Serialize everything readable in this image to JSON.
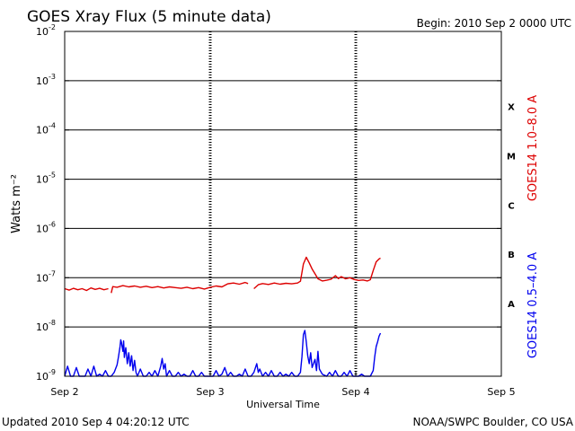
{
  "header": {
    "title": "GOES Xray Flux (5 minute data)",
    "begin": "Begin:  2010 Sep 2 0000 UTC"
  },
  "footer": {
    "updated": "Updated 2010 Sep  4 04:20:12 UTC",
    "source": "NOAA/SWPC Boulder, CO USA"
  },
  "chart_data": {
    "type": "line",
    "title": "GOES Xray Flux (5 minute data)",
    "xlabel": "Universal Time",
    "ylabel": "Watts m⁻²",
    "yscale": "log",
    "ylim": [
      1e-09,
      0.01
    ],
    "xlim": [
      0,
      3
    ],
    "x_units": "days since 2010 Sep 2 0000 UTC",
    "x_ticks": [
      {
        "label": "Sep 2",
        "x": 0
      },
      {
        "label": "Sep 3",
        "x": 1
      },
      {
        "label": "Sep 4",
        "x": 2
      },
      {
        "label": "Sep 5",
        "x": 3
      }
    ],
    "y_ticks": [
      {
        "label": "10",
        "exp": "-2",
        "value": 0.01
      },
      {
        "label": "10",
        "exp": "-3",
        "value": 0.001
      },
      {
        "label": "10",
        "exp": "-4",
        "value": 0.0001
      },
      {
        "label": "10",
        "exp": "-5",
        "value": 1e-05
      },
      {
        "label": "10",
        "exp": "-6",
        "value": 1e-06
      },
      {
        "label": "10",
        "exp": "-7",
        "value": 1e-07
      },
      {
        "label": "10",
        "exp": "-8",
        "value": 1e-08
      },
      {
        "label": "10",
        "exp": "-9",
        "value": 1e-09
      }
    ],
    "flare_classes": [
      {
        "label": "X",
        "value": 0.0003
      },
      {
        "label": "M",
        "value": 3e-05
      },
      {
        "label": "C",
        "value": 3e-06
      },
      {
        "label": "B",
        "value": 3e-07
      },
      {
        "label": "A",
        "value": 3e-08
      }
    ],
    "grid": true,
    "series": [
      {
        "name": "GOES14 1.0–8.0 A",
        "color": "#dd0000",
        "points": [
          [
            0.0,
            6e-08
          ],
          [
            0.03,
            5.6e-08
          ],
          [
            0.06,
            6.1e-08
          ],
          [
            0.09,
            5.7e-08
          ],
          [
            0.12,
            6e-08
          ],
          [
            0.15,
            5.5e-08
          ],
          [
            0.18,
            6.2e-08
          ],
          [
            0.21,
            5.8e-08
          ],
          [
            0.24,
            6.1e-08
          ],
          [
            0.27,
            5.7e-08
          ],
          [
            0.3,
            6e-08
          ],
          [
            0.31,
            null
          ],
          [
            0.32,
            4.9e-08
          ],
          [
            0.33,
            6.6e-08
          ],
          [
            0.36,
            6.4e-08
          ],
          [
            0.4,
            6.9e-08
          ],
          [
            0.44,
            6.5e-08
          ],
          [
            0.48,
            6.8e-08
          ],
          [
            0.52,
            6.4e-08
          ],
          [
            0.56,
            6.7e-08
          ],
          [
            0.6,
            6.3e-08
          ],
          [
            0.64,
            6.6e-08
          ],
          [
            0.68,
            6.2e-08
          ],
          [
            0.72,
            6.5e-08
          ],
          [
            0.76,
            6.3e-08
          ],
          [
            0.8,
            6.1e-08
          ],
          [
            0.84,
            6.4e-08
          ],
          [
            0.88,
            6e-08
          ],
          [
            0.92,
            6.3e-08
          ],
          [
            0.96,
            5.9e-08
          ],
          [
            1.0,
            6.4e-08
          ],
          [
            1.04,
            6.8e-08
          ],
          [
            1.08,
            6.5e-08
          ],
          [
            1.12,
            7.5e-08
          ],
          [
            1.16,
            7.8e-08
          ],
          [
            1.2,
            7.4e-08
          ],
          [
            1.24,
            8e-08
          ],
          [
            1.26,
            7.6e-08
          ],
          [
            1.27,
            null
          ],
          [
            1.3,
            6e-08
          ],
          [
            1.33,
            7.2e-08
          ],
          [
            1.36,
            7.6e-08
          ],
          [
            1.4,
            7.3e-08
          ],
          [
            1.44,
            7.8e-08
          ],
          [
            1.48,
            7.4e-08
          ],
          [
            1.52,
            7.7e-08
          ],
          [
            1.56,
            7.5e-08
          ],
          [
            1.6,
            7.8e-08
          ],
          [
            1.62,
            8.5e-08
          ],
          [
            1.64,
            1.9e-07
          ],
          [
            1.66,
            2.6e-07
          ],
          [
            1.68,
            2e-07
          ],
          [
            1.7,
            1.5e-07
          ],
          [
            1.72,
            1.2e-07
          ],
          [
            1.74,
            9.5e-08
          ],
          [
            1.77,
            8.6e-08
          ],
          [
            1.8,
            8.9e-08
          ],
          [
            1.83,
            9.3e-08
          ],
          [
            1.86,
            1.1e-07
          ],
          [
            1.88,
            9.6e-08
          ],
          [
            1.9,
            1.05e-07
          ],
          [
            1.93,
            9.5e-08
          ],
          [
            1.96,
            1e-07
          ],
          [
            1.99,
            9.2e-08
          ],
          [
            2.02,
            8.8e-08
          ],
          [
            2.05,
            9e-08
          ],
          [
            2.08,
            8.6e-08
          ],
          [
            2.1,
            9.1e-08
          ],
          [
            2.12,
            1.4e-07
          ],
          [
            2.14,
            2.1e-07
          ],
          [
            2.16,
            2.4e-07
          ],
          [
            2.17,
            2.5e-07
          ]
        ]
      },
      {
        "name": "GOES14 0.5–4.0 A",
        "color": "#0000ee",
        "points": [
          [
            0.0,
            1e-09
          ],
          [
            0.02,
            1.6e-09
          ],
          [
            0.04,
            1e-09
          ],
          [
            0.06,
            1e-09
          ],
          [
            0.08,
            1.5e-09
          ],
          [
            0.1,
            1e-09
          ],
          [
            0.12,
            1e-09
          ],
          [
            0.14,
            1e-09
          ],
          [
            0.16,
            1.4e-09
          ],
          [
            0.18,
            1e-09
          ],
          [
            0.2,
            1.6e-09
          ],
          [
            0.22,
            1e-09
          ],
          [
            0.24,
            1.1e-09
          ],
          [
            0.26,
            1e-09
          ],
          [
            0.28,
            1.3e-09
          ],
          [
            0.3,
            1e-09
          ],
          [
            0.32,
            1e-09
          ],
          [
            0.34,
            1.2e-09
          ],
          [
            0.36,
            1.7e-09
          ],
          [
            0.37,
            2.5e-09
          ],
          [
            0.38,
            4e-09
          ],
          [
            0.385,
            5.5e-09
          ],
          [
            0.39,
            4.8e-09
          ],
          [
            0.4,
            3.2e-09
          ],
          [
            0.405,
            5.2e-09
          ],
          [
            0.41,
            2.4e-09
          ],
          [
            0.42,
            3.8e-09
          ],
          [
            0.43,
            1.8e-09
          ],
          [
            0.44,
            3e-09
          ],
          [
            0.45,
            1.6e-09
          ],
          [
            0.46,
            2.6e-09
          ],
          [
            0.47,
            1.3e-09
          ],
          [
            0.48,
            2.1e-09
          ],
          [
            0.49,
            1.2e-09
          ],
          [
            0.5,
            1e-09
          ],
          [
            0.52,
            1.4e-09
          ],
          [
            0.54,
            1e-09
          ],
          [
            0.56,
            1e-09
          ],
          [
            0.58,
            1.2e-09
          ],
          [
            0.6,
            1e-09
          ],
          [
            0.62,
            1.3e-09
          ],
          [
            0.64,
            1e-09
          ],
          [
            0.66,
            1.6e-09
          ],
          [
            0.67,
            2.3e-09
          ],
          [
            0.68,
            1.4e-09
          ],
          [
            0.69,
            1.8e-09
          ],
          [
            0.7,
            1e-09
          ],
          [
            0.72,
            1.3e-09
          ],
          [
            0.74,
            1e-09
          ],
          [
            0.76,
            1e-09
          ],
          [
            0.78,
            1.2e-09
          ],
          [
            0.8,
            1e-09
          ],
          [
            0.82,
            1.1e-09
          ],
          [
            0.84,
            1e-09
          ],
          [
            0.86,
            1e-09
          ],
          [
            0.88,
            1.3e-09
          ],
          [
            0.9,
            1e-09
          ],
          [
            0.92,
            1e-09
          ],
          [
            0.94,
            1.2e-09
          ],
          [
            0.96,
            1e-09
          ],
          [
            0.98,
            1e-09
          ],
          [
            1.0,
            1e-09
          ],
          [
            1.02,
            1e-09
          ],
          [
            1.04,
            1.3e-09
          ],
          [
            1.06,
            1e-09
          ],
          [
            1.08,
            1.1e-09
          ],
          [
            1.1,
            1.5e-09
          ],
          [
            1.12,
            1e-09
          ],
          [
            1.14,
            1.2e-09
          ],
          [
            1.16,
            1e-09
          ],
          [
            1.18,
            1e-09
          ],
          [
            1.2,
            1.1e-09
          ],
          [
            1.22,
            1e-09
          ],
          [
            1.24,
            1.4e-09
          ],
          [
            1.26,
            1e-09
          ],
          [
            1.28,
            1e-09
          ],
          [
            1.3,
            1.2e-09
          ],
          [
            1.32,
            1.8e-09
          ],
          [
            1.33,
            1.2e-09
          ],
          [
            1.34,
            1.4e-09
          ],
          [
            1.36,
            1e-09
          ],
          [
            1.38,
            1.2e-09
          ],
          [
            1.4,
            1e-09
          ],
          [
            1.42,
            1.3e-09
          ],
          [
            1.44,
            1e-09
          ],
          [
            1.46,
            1e-09
          ],
          [
            1.48,
            1.2e-09
          ],
          [
            1.5,
            1e-09
          ],
          [
            1.52,
            1.1e-09
          ],
          [
            1.54,
            1e-09
          ],
          [
            1.56,
            1.2e-09
          ],
          [
            1.58,
            1e-09
          ],
          [
            1.6,
            1e-09
          ],
          [
            1.62,
            1.2e-09
          ],
          [
            1.63,
            2.5e-09
          ],
          [
            1.64,
            7e-09
          ],
          [
            1.65,
            8.5e-09
          ],
          [
            1.66,
            5e-09
          ],
          [
            1.67,
            2.6e-09
          ],
          [
            1.68,
            1.8e-09
          ],
          [
            1.69,
            3e-09
          ],
          [
            1.7,
            1.5e-09
          ],
          [
            1.72,
            2.2e-09
          ],
          [
            1.73,
            1.3e-09
          ],
          [
            1.74,
            3.2e-09
          ],
          [
            1.75,
            1.4e-09
          ],
          [
            1.77,
            1.1e-09
          ],
          [
            1.8,
            1e-09
          ],
          [
            1.82,
            1.2e-09
          ],
          [
            1.84,
            1e-09
          ],
          [
            1.86,
            1.3e-09
          ],
          [
            1.88,
            1e-09
          ],
          [
            1.9,
            1e-09
          ],
          [
            1.92,
            1.2e-09
          ],
          [
            1.94,
            1e-09
          ],
          [
            1.96,
            1.3e-09
          ],
          [
            1.98,
            1e-09
          ],
          [
            2.0,
            1e-09
          ],
          [
            2.02,
            1e-09
          ],
          [
            2.04,
            1.1e-09
          ],
          [
            2.06,
            1e-09
          ],
          [
            2.08,
            1e-09
          ],
          [
            2.1,
            1e-09
          ],
          [
            2.12,
            1.3e-09
          ],
          [
            2.13,
            2.5e-09
          ],
          [
            2.14,
            4e-09
          ],
          [
            2.15,
            5e-09
          ],
          [
            2.16,
            6.5e-09
          ],
          [
            2.17,
            7.5e-09
          ]
        ]
      }
    ]
  }
}
